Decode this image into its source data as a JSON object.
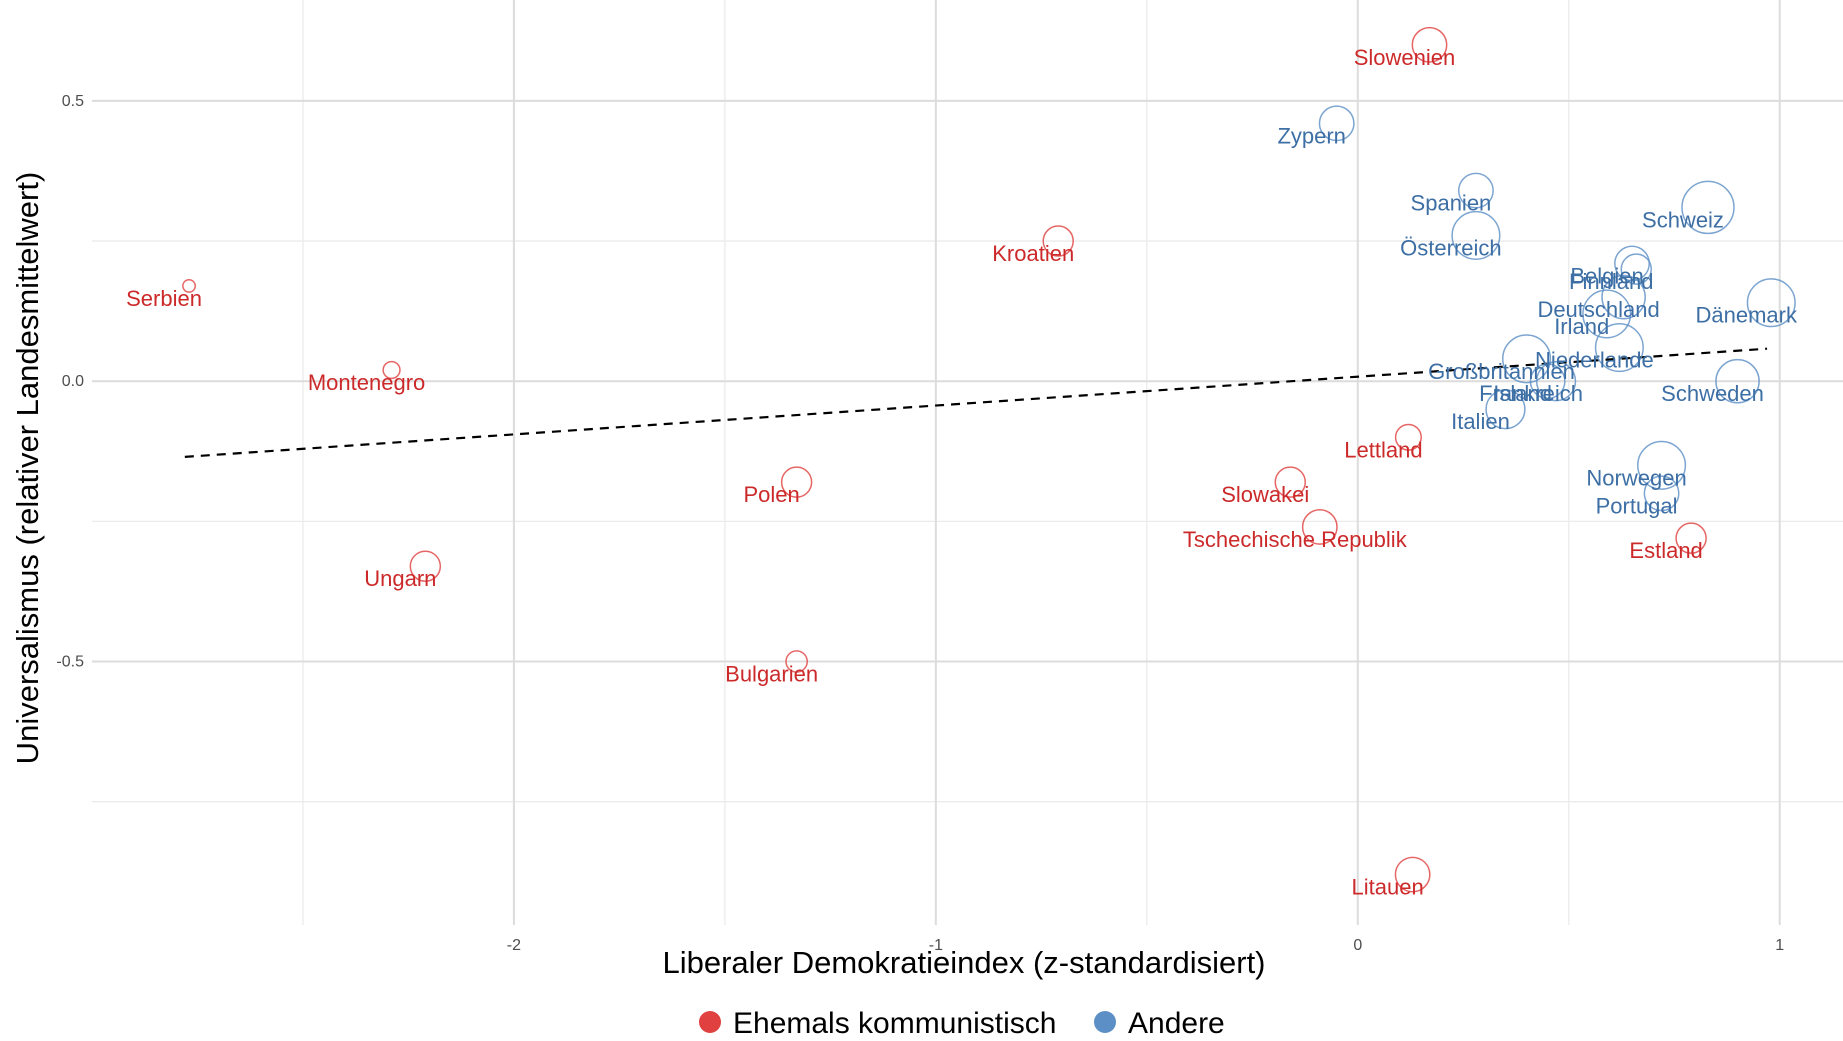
{
  "chart_data": {
    "type": "scatter",
    "xlabel": "Liberaler Demokratieindex (z-standardisiert)",
    "ylabel": "Universalismus (relativer Landesmittelwert)",
    "xlim": [
      -3.0,
      1.15
    ],
    "ylim": [
      -0.97,
      0.68
    ],
    "x_ticks": [
      -2,
      -1,
      0,
      1
    ],
    "y_ticks": [
      -0.5,
      0.0,
      0.5
    ],
    "x_tick_labels": [
      "-2",
      "-1",
      "0",
      "1"
    ],
    "y_tick_labels": [
      "-0.5",
      "0.0",
      "0.5"
    ],
    "grid": true,
    "legend_position": "bottom",
    "colors": {
      "Ehemals kommunistisch": "#e0403f",
      "Andere": "#5b8fc5"
    },
    "label_colors": {
      "Ehemals kommunistisch": "#cc2a2a",
      "Andere": "#3d6fa5"
    },
    "legend": [
      "Ehemals kommunistisch",
      "Andere"
    ],
    "trend_line": {
      "x": [
        -2.78,
        0.97
      ],
      "y": [
        -0.135,
        0.058
      ]
    },
    "points": [
      {
        "label": "Slowenien",
        "x": 0.17,
        "y": 0.6,
        "size": 3,
        "group": "Ehemals kommunistisch"
      },
      {
        "label": "Zypern",
        "x": -0.05,
        "y": 0.46,
        "size": 3,
        "group": "Andere"
      },
      {
        "label": "Spanien",
        "x": 0.28,
        "y": 0.34,
        "size": 3,
        "group": "Andere"
      },
      {
        "label": "Schweiz",
        "x": 0.83,
        "y": 0.31,
        "size": 5,
        "group": "Andere"
      },
      {
        "label": "Österreich",
        "x": 0.28,
        "y": 0.26,
        "size": 4.5,
        "group": "Andere"
      },
      {
        "label": "Kroatien",
        "x": -0.71,
        "y": 0.25,
        "size": 2.5,
        "group": "Ehemals kommunistisch"
      },
      {
        "label": "Belgien",
        "x": 0.65,
        "y": 0.21,
        "size": 3,
        "group": "Andere"
      },
      {
        "label": "Finnland",
        "x": 0.66,
        "y": 0.2,
        "size": 2.5,
        "group": "Andere"
      },
      {
        "label": "Serbien",
        "x": -2.77,
        "y": 0.17,
        "size": 0.5,
        "group": "Ehemals kommunistisch"
      },
      {
        "label": "Deutschland",
        "x": 0.63,
        "y": 0.15,
        "size": 4,
        "group": "Andere"
      },
      {
        "label": "Dänemark",
        "x": 0.98,
        "y": 0.14,
        "size": 4.5,
        "group": "Andere"
      },
      {
        "label": "Irland",
        "x": 0.59,
        "y": 0.12,
        "size": 4.5,
        "group": "Andere"
      },
      {
        "label": "Niederlande",
        "x": 0.62,
        "y": 0.06,
        "size": 4.5,
        "group": "Andere"
      },
      {
        "label": "Großbritannien",
        "x": 0.4,
        "y": 0.04,
        "size": 4.5,
        "group": "Andere"
      },
      {
        "label": "Montenegro",
        "x": -2.29,
        "y": 0.02,
        "size": 1,
        "group": "Ehemals kommunistisch"
      },
      {
        "label": "Island",
        "x": 0.45,
        "y": 0.0,
        "size": 3,
        "group": "Andere"
      },
      {
        "label": "Schweden",
        "x": 0.9,
        "y": 0.0,
        "size": 4,
        "group": "Andere"
      },
      {
        "label": "Frankreich",
        "x": 0.47,
        "y": 0.0,
        "size": 3.5,
        "group": "Andere"
      },
      {
        "label": "Italien",
        "x": 0.35,
        "y": -0.05,
        "size": 3.5,
        "group": "Andere"
      },
      {
        "label": "Lettland",
        "x": 0.12,
        "y": -0.1,
        "size": 2,
        "group": "Ehemals kommunistisch"
      },
      {
        "label": "Norwegen",
        "x": 0.72,
        "y": -0.15,
        "size": 4.5,
        "group": "Andere"
      },
      {
        "label": "Polen",
        "x": -1.33,
        "y": -0.18,
        "size": 2.5,
        "group": "Ehemals kommunistisch"
      },
      {
        "label": "Slowakei",
        "x": -0.16,
        "y": -0.18,
        "size": 2.5,
        "group": "Ehemals kommunistisch"
      },
      {
        "label": "Portugal",
        "x": 0.72,
        "y": -0.2,
        "size": 3,
        "group": "Andere"
      },
      {
        "label": "Tschechische Republik",
        "x": -0.09,
        "y": -0.26,
        "size": 3,
        "group": "Ehemals kommunistisch"
      },
      {
        "label": "Estland",
        "x": 0.79,
        "y": -0.28,
        "size": 2.5,
        "group": "Ehemals kommunistisch"
      },
      {
        "label": "Ungarn",
        "x": -2.21,
        "y": -0.33,
        "size": 2.5,
        "group": "Ehemals kommunistisch"
      },
      {
        "label": "Bulgarien",
        "x": -1.33,
        "y": -0.5,
        "size": 1.5,
        "group": "Ehemals kommunistisch"
      },
      {
        "label": "Litauen",
        "x": 0.13,
        "y": -0.88,
        "size": 3,
        "group": "Ehemals kommunistisch"
      }
    ]
  }
}
